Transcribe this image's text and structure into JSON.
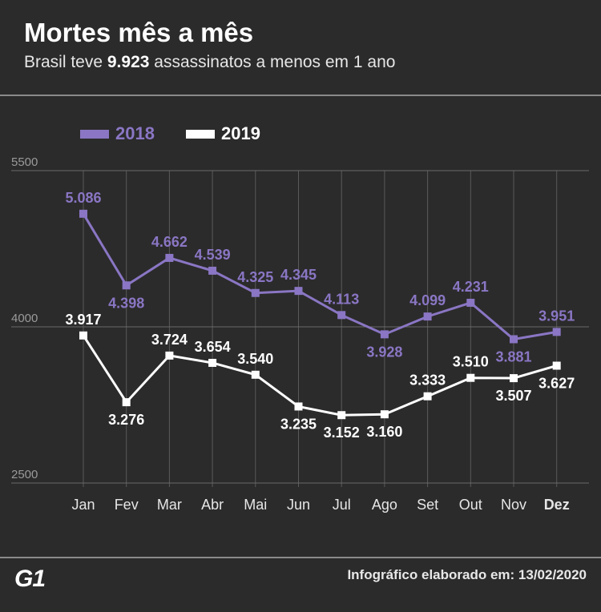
{
  "header": {
    "title": "Mortes mês a mês",
    "subtitle_prefix": "Brasil teve ",
    "subtitle_highlight": "9.923",
    "subtitle_suffix": " assassinatos a menos em 1 ano"
  },
  "legend": {
    "label_2018": "2018",
    "label_2019": "2019"
  },
  "footer": {
    "logo": "G1",
    "note": "Infográfico elaborado em: 13/02/2020"
  },
  "colors": {
    "series_2018": "#8a76c4",
    "series_2019": "#ffffff",
    "background": "#2b2b2b",
    "grid": "#5a5a5a"
  },
  "chart_data": {
    "type": "line",
    "title": "Mortes mês a mês",
    "categories": [
      "Jan",
      "Fev",
      "Mar",
      "Abr",
      "Mai",
      "Jun",
      "Jul",
      "Ago",
      "Set",
      "Out",
      "Nov",
      "Dez"
    ],
    "series": [
      {
        "name": "2018",
        "values": [
          5086,
          4398,
          4662,
          4539,
          4325,
          4345,
          4113,
          3928,
          4099,
          4231,
          3881,
          3951
        ],
        "labels": [
          "5.086",
          "4.398",
          "4.662",
          "4.539",
          "4.325",
          "4.345",
          "4.113",
          "3.928",
          "4.099",
          "4.231",
          "3.881",
          "3.951"
        ]
      },
      {
        "name": "2019",
        "values": [
          3917,
          3276,
          3724,
          3654,
          3540,
          3235,
          3152,
          3160,
          3333,
          3510,
          3507,
          3627
        ],
        "labels": [
          "3.917",
          "3.276",
          "3.724",
          "3.654",
          "3.540",
          "3.235",
          "3.152",
          "3.160",
          "3.333",
          "3.510",
          "3.507",
          "3.627"
        ]
      }
    ],
    "yticks": [
      2500,
      4000,
      5500
    ],
    "ytick_labels": [
      "2500",
      "4000",
      "5500"
    ],
    "ylim": [
      2500,
      5500
    ],
    "grid": true
  }
}
